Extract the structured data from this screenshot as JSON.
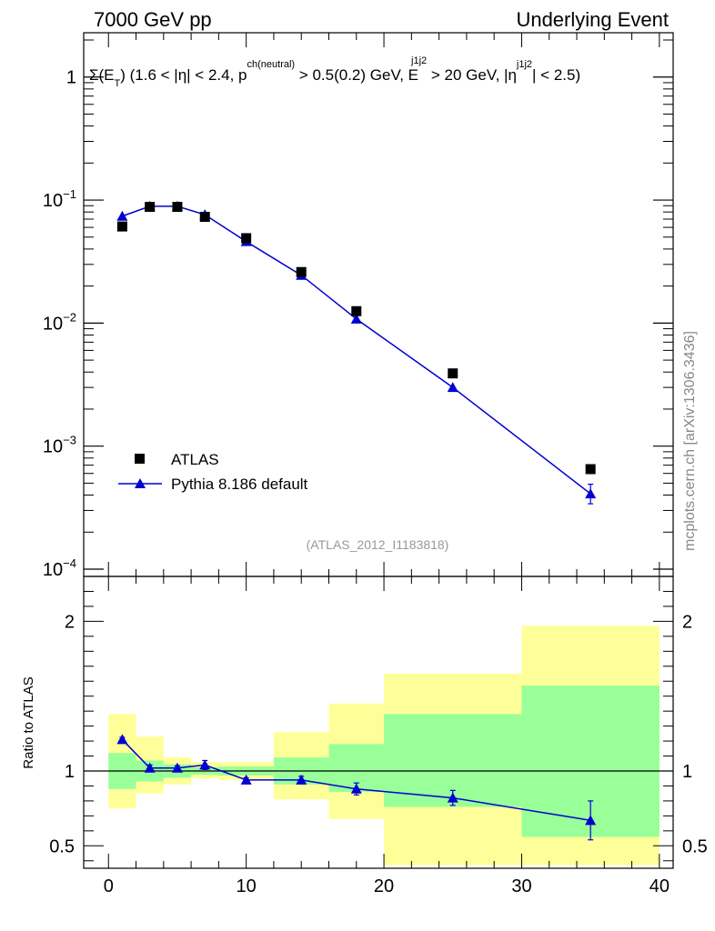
{
  "header": {
    "left": "7000 GeV pp",
    "right": "Underlying Event"
  },
  "plot_title": {
    "prefix": "Σ(E",
    "sub_t": "T",
    "mid": ") (1.6 < |η| < 2.4, p",
    "sup_ch": "ch(neutral)",
    "cut": " > 0.5(0.2) GeV, E",
    "sup_j": "j1j2",
    "cut2": " > 20 GeV, |η",
    "sup_j2": "j1j2",
    "end": "| < 2.5)"
  },
  "side_label": "mcplots.cern.ch [arXiv:1306.3436]",
  "ref_label": "(ATLAS_2012_I1183818)",
  "ratio_ylabel": "Ratio to ATLAS",
  "colors": {
    "mc": "#0000d0",
    "data": "#000000",
    "band_outer": "#ffff99",
    "band_inner": "#99ff99"
  },
  "chart_data": [
    {
      "type": "scatter",
      "yscale": "log",
      "ylim": [
        0.0001,
        2
      ],
      "xlim": [
        -1.8,
        41
      ],
      "yticks": [
        0.0001,
        0.001,
        0.01,
        0.1,
        1
      ],
      "ytick_labels": {
        "0.0001": {
          "base": "10",
          "exp": "−4"
        },
        "0.001": {
          "base": "10",
          "exp": "−3"
        },
        "0.01": {
          "base": "10",
          "exp": "−2"
        },
        "0.1": {
          "base": "10",
          "exp": "−1"
        },
        "1": {
          "base": "1",
          "exp": ""
        }
      },
      "series": [
        {
          "name": "ATLAS",
          "marker": "square",
          "x": [
            1,
            3,
            5,
            7,
            10,
            14,
            18,
            25,
            35
          ],
          "y": [
            0.061,
            0.088,
            0.088,
            0.073,
            0.049,
            0.026,
            0.0125,
            0.0039,
            0.00065
          ]
        },
        {
          "name": "Pythia 8.186 default",
          "marker": "triangle",
          "x": [
            1,
            3,
            5,
            7,
            10,
            14,
            18,
            25,
            35
          ],
          "y": [
            0.074,
            0.089,
            0.089,
            0.076,
            0.046,
            0.0245,
            0.0108,
            0.003,
            0.00041
          ],
          "yerr_low": [
            0,
            0,
            0,
            0,
            0,
            0,
            0,
            0,
            7e-05
          ],
          "yerr_high": [
            0,
            0,
            0,
            0,
            0,
            0,
            0,
            0,
            8e-05
          ]
        }
      ]
    },
    {
      "type": "line",
      "ylabel": "Ratio to ATLAS",
      "ylim": [
        0.35,
        2.3
      ],
      "xlim": [
        -1.8,
        41
      ],
      "xticks": [
        0,
        10,
        20,
        30,
        40
      ],
      "yticks": [
        0.5,
        1,
        2
      ],
      "ytick_labels": [
        "0.5",
        "1",
        "2"
      ],
      "reference_line": 1,
      "bands": [
        {
          "xlo": 0,
          "xhi": 2,
          "outer": [
            0.75,
            1.38
          ],
          "inner": [
            0.88,
            1.12
          ]
        },
        {
          "xlo": 2,
          "xhi": 4,
          "outer": [
            0.85,
            1.23
          ],
          "inner": [
            0.93,
            1.07
          ]
        },
        {
          "xlo": 4,
          "xhi": 6,
          "outer": [
            0.91,
            1.09
          ],
          "inner": [
            0.955,
            1.045
          ]
        },
        {
          "xlo": 6,
          "xhi": 8,
          "outer": [
            0.95,
            1.06
          ],
          "inner": [
            0.975,
            1.025
          ]
        },
        {
          "xlo": 8,
          "xhi": 12,
          "outer": [
            0.94,
            1.06
          ],
          "inner": [
            0.97,
            1.03
          ]
        },
        {
          "xlo": 12,
          "xhi": 16,
          "outer": [
            0.81,
            1.26
          ],
          "inner": [
            0.91,
            1.09
          ]
        },
        {
          "xlo": 16,
          "xhi": 20,
          "outer": [
            0.68,
            1.45
          ],
          "inner": [
            0.86,
            1.18
          ]
        },
        {
          "xlo": 20,
          "xhi": 30,
          "outer": [
            0.37,
            1.65
          ],
          "inner": [
            0.76,
            1.38
          ]
        },
        {
          "xlo": 30,
          "xhi": 40,
          "outer": [
            0.37,
            1.97
          ],
          "inner": [
            0.56,
            1.57
          ]
        }
      ],
      "series": [
        {
          "name": "Pythia 8.186 default",
          "x": [
            1,
            3,
            5,
            7,
            10,
            14,
            18,
            25,
            35
          ],
          "y": [
            1.21,
            1.02,
            1.02,
            1.04,
            0.94,
            0.94,
            0.88,
            0.82,
            0.67
          ],
          "yerr": [
            0.015,
            0.02,
            0.015,
            0.03,
            0.015,
            0.025,
            0.04,
            0.05,
            0.13
          ]
        }
      ]
    }
  ]
}
